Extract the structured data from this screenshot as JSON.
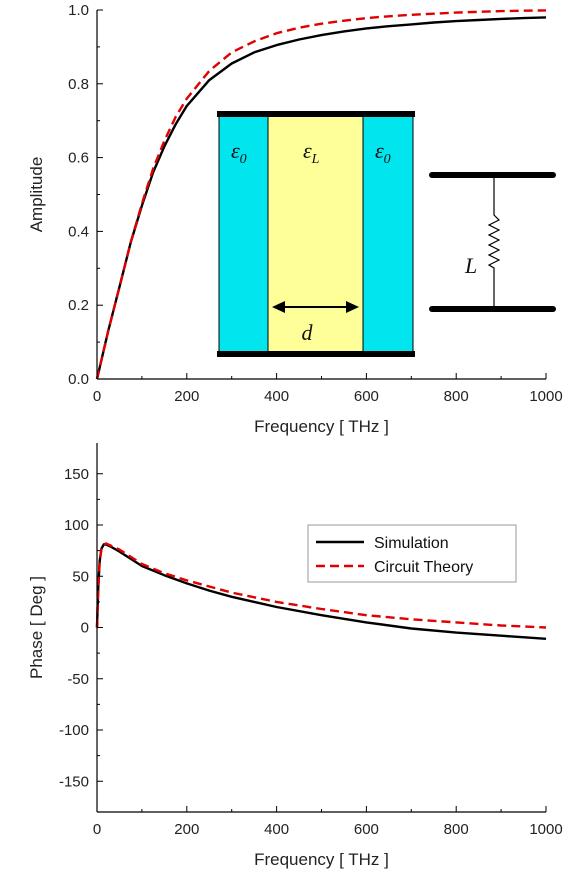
{
  "chart_data": [
    {
      "type": "line",
      "xlabel": "Frequency [ THz ]",
      "ylabel": "Amplitude",
      "xlim": [
        0,
        1000
      ],
      "ylim": [
        0,
        1.0
      ],
      "xticks": [
        "0",
        "200",
        "400",
        "600",
        "800",
        "1000"
      ],
      "yticks": [
        "0.0",
        "0.2",
        "0.4",
        "0.6",
        "0.8",
        "1.0"
      ],
      "grid": false,
      "series": [
        {
          "color": "#000000",
          "dash": "solid",
          "x": [
            0,
            25,
            50,
            75,
            100,
            125,
            150,
            175,
            200,
            250,
            300,
            350,
            400,
            450,
            500,
            550,
            600,
            650,
            700,
            750,
            800,
            850,
            900,
            950,
            1000
          ],
          "y": [
            0,
            0.13,
            0.25,
            0.37,
            0.47,
            0.56,
            0.63,
            0.69,
            0.74,
            0.81,
            0.855,
            0.885,
            0.905,
            0.92,
            0.932,
            0.942,
            0.95,
            0.956,
            0.961,
            0.966,
            0.97,
            0.973,
            0.976,
            0.978,
            0.98
          ]
        },
        {
          "color": "#e00000",
          "dash": "dashed",
          "x": [
            0,
            25,
            50,
            75,
            100,
            125,
            150,
            175,
            200,
            250,
            300,
            350,
            400,
            450,
            500,
            550,
            600,
            650,
            700,
            750,
            800,
            850,
            900,
            950,
            1000
          ],
          "y": [
            0,
            0.13,
            0.25,
            0.37,
            0.475,
            0.57,
            0.645,
            0.71,
            0.76,
            0.835,
            0.885,
            0.915,
            0.937,
            0.952,
            0.963,
            0.971,
            0.978,
            0.983,
            0.987,
            0.99,
            0.993,
            0.995,
            0.997,
            0.998,
            0.999
          ]
        }
      ],
      "inset": {
        "left_medium": "ε",
        "left_sub": "0",
        "middle_medium": "ε",
        "middle_sub": "L",
        "right_medium": "ε",
        "right_sub": "0",
        "thickness_label": "d",
        "inductor_label": "L",
        "outer_color": "#00e5ee",
        "inner_color": "#ffff99"
      }
    },
    {
      "type": "line",
      "xlabel": "Frequency [ THz ]",
      "ylabel": "Phase [ Deg ]",
      "xlim": [
        0,
        1000
      ],
      "ylim": [
        -180,
        180
      ],
      "xticks": [
        "0",
        "200",
        "400",
        "600",
        "800",
        "1000"
      ],
      "yticks": [
        "-150",
        "-100",
        "-50",
        "0",
        "50",
        "100",
        "150"
      ],
      "grid": false,
      "legend_position": "upper-right",
      "series": [
        {
          "name": "Simulation",
          "color": "#000000",
          "dash": "solid",
          "x": [
            0,
            3,
            6,
            10,
            15,
            20,
            30,
            50,
            75,
            100,
            150,
            200,
            250,
            300,
            400,
            500,
            600,
            700,
            800,
            900,
            1000
          ],
          "y": [
            0,
            40,
            65,
            77,
            81,
            81,
            79,
            74,
            67,
            60,
            51,
            43,
            36,
            30,
            20,
            12,
            5,
            -1,
            -5,
            -8,
            -11
          ]
        },
        {
          "name": "Circuit Theory",
          "color": "#e00000",
          "dash": "dashed",
          "x": [
            0,
            3,
            6,
            10,
            15,
            20,
            30,
            50,
            75,
            100,
            150,
            200,
            250,
            300,
            400,
            500,
            600,
            700,
            800,
            900,
            1000
          ],
          "y": [
            0,
            40,
            65,
            77,
            81,
            82,
            80,
            76,
            69,
            62,
            53,
            46,
            40,
            34,
            25,
            18,
            12,
            8,
            5,
            2,
            0
          ]
        }
      ]
    }
  ]
}
